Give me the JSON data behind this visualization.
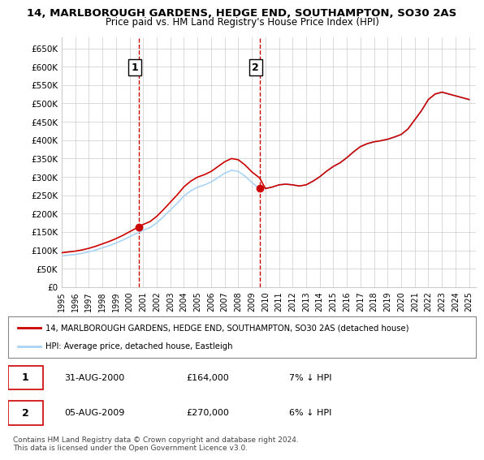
{
  "title1": "14, MARLBOROUGH GARDENS, HEDGE END, SOUTHAMPTON, SO30 2AS",
  "title2": "Price paid vs. HM Land Registry's House Price Index (HPI)",
  "ylabel_ticks": [
    "£0",
    "£50K",
    "£100K",
    "£150K",
    "£200K",
    "£250K",
    "£300K",
    "£350K",
    "£400K",
    "£450K",
    "£500K",
    "£550K",
    "£600K",
    "£650K"
  ],
  "ytick_vals": [
    0,
    50000,
    100000,
    150000,
    200000,
    250000,
    300000,
    350000,
    400000,
    450000,
    500000,
    550000,
    600000,
    650000
  ],
  "ylim": [
    0,
    680000
  ],
  "xlim_start": 1995.0,
  "xlim_end": 2025.5,
  "sale1_x": 2000.667,
  "sale1_y": 164000,
  "sale1_label": "1",
  "sale2_x": 2009.583,
  "sale2_y": 270000,
  "sale2_label": "2",
  "legend_line1": "14, MARLBOROUGH GARDENS, HEDGE END, SOUTHAMPTON, SO30 2AS (detached house)",
  "legend_line2": "HPI: Average price, detached house, Eastleigh",
  "table_row1": [
    "1",
    "31-AUG-2000",
    "£164,000",
    "7% ↓ HPI"
  ],
  "table_row2": [
    "2",
    "05-AUG-2009",
    "£270,000",
    "6% ↓ HPI"
  ],
  "footer": "Contains HM Land Registry data © Crown copyright and database right 2024.\nThis data is licensed under the Open Government Licence v3.0.",
  "hpi_color": "#aad4f5",
  "sale_color": "#cc0000",
  "dashed_line_color": "#cc0000",
  "background_color": "#ffffff",
  "grid_color": "#cccccc"
}
